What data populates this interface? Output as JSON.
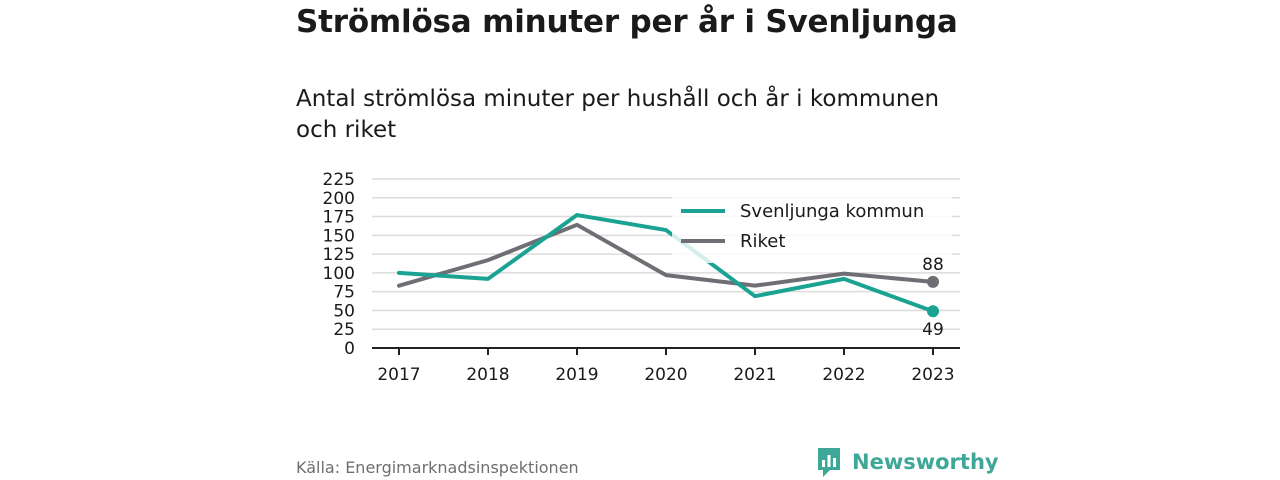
{
  "title": "Strömlösa minuter per år i Svenljunga",
  "subtitle": "Antal strömlösa minuter per hushåll och år i kommunen och riket",
  "source": "Källa: Energimarknadsinspektionen",
  "brand": {
    "name": "Newsworthy",
    "icon": "bar-chart-speech-icon",
    "color": "#3da898"
  },
  "chart_data": {
    "type": "line",
    "categories": [
      "2017",
      "2018",
      "2019",
      "2020",
      "2021",
      "2022",
      "2023"
    ],
    "series": [
      {
        "name": "Svenljunga kommun",
        "color": "#1aa393",
        "values": [
          100,
          92,
          177,
          157,
          69,
          92,
          49
        ],
        "end_label": "49"
      },
      {
        "name": "Riket",
        "color": "#6f6e74",
        "values": [
          83,
          117,
          164,
          97,
          83,
          99,
          88
        ],
        "end_label": "88"
      }
    ],
    "ylim": [
      0,
      225
    ],
    "yticks": [
      "0",
      "25",
      "50",
      "75",
      "100",
      "125",
      "150",
      "175",
      "200",
      "225"
    ],
    "grid": true,
    "legend": "top-right"
  }
}
